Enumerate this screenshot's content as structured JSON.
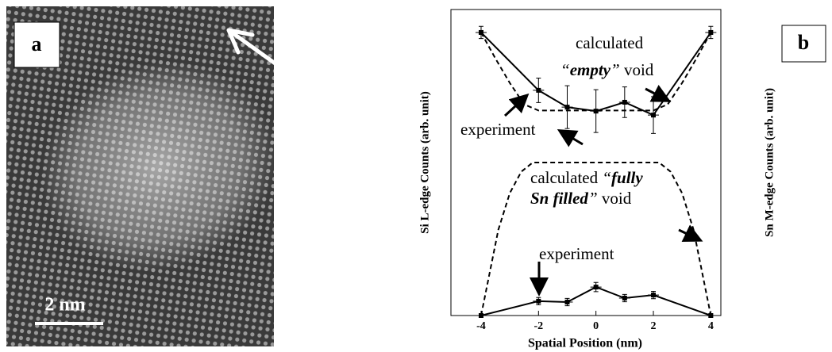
{
  "panel_a": {
    "label": "a",
    "scale_bar": "2 nm"
  },
  "chart_data": {
    "type": "line",
    "panel_label": "b",
    "xlabel": "Spatial Position (nm)",
    "ylabel": "Si L-edge Counts (arb. unit)",
    "y2label": "Sn M-edge Counts (arb. unit)",
    "xlim": [
      -5.05,
      4.35
    ],
    "xticks": [
      -4,
      -2,
      0,
      2,
      4
    ],
    "ylim": [
      0,
      100
    ],
    "series": [
      {
        "style": "solid",
        "color": "#000000",
        "markers": true,
        "x": [
          -4,
          -2,
          -1,
          0,
          1,
          2,
          4
        ],
        "values": [
          92.5,
          73.6,
          68.1,
          66.8,
          69.7,
          65.5,
          92.5
        ],
        "errors": [
          2,
          4,
          7,
          7,
          5,
          6,
          2
        ]
      },
      {
        "style": "dashed",
        "color": "#000000",
        "markers": false,
        "x": [
          -4,
          -3.5,
          -3,
          -2.5,
          -2,
          2,
          2.5,
          3,
          3.5,
          4
        ],
        "values": [
          92.5,
          84,
          76,
          69,
          67,
          67,
          69,
          76,
          84,
          92.5
        ]
      },
      {
        "style": "dashed",
        "color": "#000000",
        "markers": false,
        "x": [
          -4,
          -3.7,
          -3.4,
          -3,
          -2.6,
          -2.2,
          2.2,
          2.6,
          3,
          3.4,
          3.7,
          4
        ],
        "values": [
          0,
          14,
          28,
          40,
          47,
          50,
          50,
          47,
          40,
          28,
          14,
          0
        ]
      },
      {
        "style": "solid",
        "color": "#000000",
        "markers": true,
        "x": [
          -4,
          -2,
          -1,
          0,
          1,
          2,
          4
        ],
        "values": [
          0,
          4.7,
          4.4,
          9.3,
          5.7,
          6.7,
          0
        ],
        "errors": [
          0.5,
          1.2,
          1.2,
          1.5,
          1.2,
          1.2,
          0.5
        ]
      }
    ],
    "annotations": [
      {
        "runs": [
          {
            "text": "calculated",
            "style": "normal"
          }
        ]
      },
      {
        "runs": [
          {
            "text": "“",
            "style": "italic"
          },
          {
            "text": "empty",
            "style": "bolditalic"
          },
          {
            "text": "”",
            "style": "italic"
          },
          {
            "text": " void",
            "style": "normal"
          }
        ]
      },
      {
        "runs": [
          {
            "text": "experiment",
            "style": "normal"
          }
        ]
      },
      {
        "runs": [
          {
            "text": "calculated ",
            "style": "normal"
          },
          {
            "text": "“",
            "style": "italic"
          },
          {
            "text": "fully",
            "style": "bolditalic"
          }
        ]
      },
      {
        "runs": [
          {
            "text": "Sn filled",
            "style": "bolditalic"
          },
          {
            "text": "”",
            "style": "italic"
          },
          {
            "text": " void",
            "style": "normal"
          }
        ]
      },
      {
        "runs": [
          {
            "text": "experiment",
            "style": "normal"
          }
        ]
      }
    ]
  }
}
